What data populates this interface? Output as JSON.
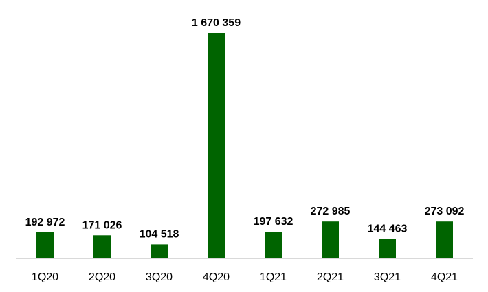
{
  "chart_data": {
    "type": "bar",
    "categories": [
      "1Q20",
      "2Q20",
      "3Q20",
      "4Q20",
      "1Q21",
      "2Q21",
      "3Q21",
      "4Q21"
    ],
    "values": [
      192972,
      171026,
      104518,
      1670359,
      197632,
      272985,
      144463,
      273092
    ],
    "value_labels": [
      "192 972",
      "171 026",
      "104 518",
      "1 670 359",
      "197 632",
      "272 985",
      "144 463",
      "273 092"
    ],
    "ylim": [
      0,
      1670359
    ],
    "bar_color": "#006400",
    "axis_color": "#d9d9d9",
    "grid": false,
    "legend": "none"
  }
}
